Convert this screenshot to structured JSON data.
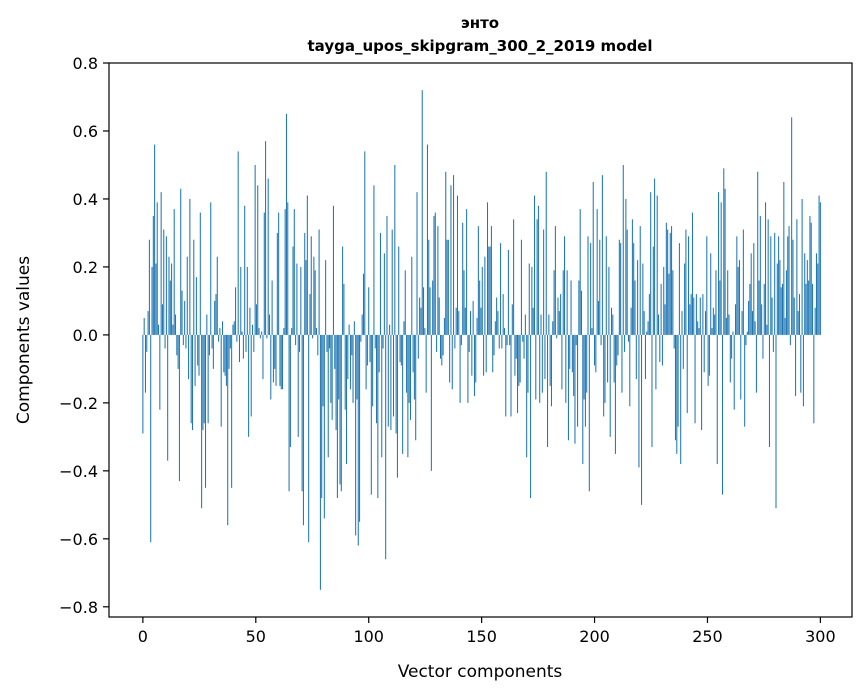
{
  "chart_data": {
    "type": "bar",
    "title": "энто",
    "subtitle": "tayga_upos_skipgram_300_2_2019 model",
    "xlabel": "Vector components",
    "ylabel": "Components values",
    "xlim": [
      -15,
      314
    ],
    "ylim": [
      -0.83,
      0.8
    ],
    "xticks": [
      0,
      50,
      100,
      150,
      200,
      250,
      300
    ],
    "yticks": [
      -0.8,
      -0.6,
      -0.4,
      -0.2,
      0.0,
      0.2,
      0.4,
      0.6,
      0.8
    ],
    "ytick_labels": [
      "−0.8",
      "−0.6",
      "−0.4",
      "−0.2",
      "0.0",
      "0.2",
      "0.4",
      "0.6",
      "0.8"
    ],
    "grid": false,
    "bar_color": "#1f77b4",
    "values": [
      -0.29,
      0.05,
      -0.17,
      -0.05,
      0.07,
      0.28,
      -0.61,
      0.2,
      0.35,
      0.56,
      0.21,
      0.39,
      0.03,
      -0.22,
      0.42,
      0.09,
      0.31,
      -0.04,
      0.29,
      -0.37,
      0.23,
      0.16,
      0.21,
      0.03,
      0.37,
      0.06,
      -0.06,
      -0.1,
      -0.43,
      0.43,
      0.13,
      -0.03,
      0.1,
      -0.04,
      0.23,
      -0.13,
      0.4,
      -0.26,
      -0.28,
      0.28,
      -0.15,
      0.17,
      -0.09,
      -0.12,
      0.36,
      -0.51,
      -0.28,
      -0.26,
      -0.45,
      0.06,
      -0.26,
      -0.06,
      0.39,
      -0.04,
      -0.1,
      0.1,
      0.12,
      0.23,
      -0.02,
      0.02,
      -0.27,
      0.04,
      -0.11,
      -0.12,
      -0.15,
      -0.56,
      -0.1,
      -0.04,
      -0.45,
      0.03,
      0.04,
      0.14,
      -0.02,
      0.54,
      -0.08,
      0.2,
      0.01,
      -0.07,
      0.38,
      -0.05,
      0.2,
      -0.3,
      0.08,
      -0.24,
      0.03,
      -0.05,
      0.5,
      0.09,
      0.44,
      0.02,
      -0.01,
      0.01,
      -0.13,
      0.36,
      0.57,
      -0.01,
      0.46,
      0.06,
      -0.19,
      0.16,
      -0.14,
      -0.1,
      -0.15,
      0.3,
      0.36,
      -0.15,
      -0.16,
      -0.16,
      0.02,
      0.37,
      0.65,
      0.39,
      -0.46,
      -0.33,
      0.02,
      0.26,
      0.37,
      -0.03,
      0.21,
      -0.3,
      -0.05,
      0.2,
      -0.46,
      -0.56,
      0.3,
      0.22,
      0.41,
      -0.61,
      0.12,
      0.29,
      -0.01,
      0.23,
      0.19,
      0.02,
      -0.06,
      0.31,
      -0.75,
      -0.48,
      -0.21,
      -0.54,
      0.22,
      -0.05,
      -0.36,
      -0.04,
      -0.2,
      -0.25,
      0.38,
      -0.1,
      -0.28,
      -0.48,
      -0.19,
      -0.44,
      -0.46,
      0.26,
      0.15,
      -0.22,
      -0.38,
      -0.13,
      0.03,
      -0.16,
      -0.06,
      -0.2,
      0.04,
      -0.59,
      -0.19,
      -0.62,
      -0.55,
      -0.02,
      0.06,
      0.18,
      0.54,
      -0.16,
      -0.09,
      0.14,
      -0.08,
      -0.47,
      -0.21,
      0.44,
      -0.04,
      -0.26,
      -0.48,
      -0.11,
      0.3,
      -0.36,
      -0.04,
      0.24,
      -0.66,
      0.35,
      -0.27,
      0.03,
      -0.28,
      0.31,
      -0.24,
      0.5,
      -0.29,
      -0.42,
      0.26,
      -0.08,
      -0.09,
      -0.35,
      0.04,
      0.19,
      -0.17,
      -0.36,
      -0.2,
      -0.25,
      0.23,
      -0.11,
      -0.19,
      -0.31,
      0.42,
      -0.07,
      0.11,
      0.08,
      0.72,
      0.14,
      0.02,
      -0.17,
      0.56,
      0.28,
      0.14,
      -0.4,
      0.16,
      0.35,
      0.36,
      -0.05,
      0.32,
      0.11,
      -0.07,
      -0.09,
      -0.06,
      0.05,
      0.48,
      0.28,
      0.28,
      -0.14,
      0.44,
      -0.16,
      0.47,
      -0.04,
      0.08,
      0.41,
      0.07,
      -0.2,
      -0.03,
      0.33,
      0.19,
      0.08,
      0.37,
      -0.2,
      -0.05,
      0.07,
      -0.12,
      0.1,
      -0.18,
      -0.14,
      0.05,
      0.32,
      0.16,
      0.08,
      0.2,
      -0.12,
      0.23,
      -0.11,
      0.39,
      0.26,
      0.26,
      0.32,
      -0.11,
      -0.06,
      0.04,
      0.11,
      0.07,
      -0.04,
      0.27,
      -0.04,
      0.12,
      0.02,
      -0.24,
      -0.03,
      0.25,
      -0.03,
      -0.24,
      0.09,
      0.34,
      -0.12,
      -0.07,
      -0.23,
      -0.15,
      -0.14,
      0.28,
      -0.02,
      -0.07,
      0.06,
      -0.36,
      -0.17,
      0.21,
      -0.48,
      0.2,
      0.08,
      0.41,
      -0.19,
      0.34,
      0.38,
      -0.2,
      0.06,
      -0.17,
      0.31,
      -0.13,
      0.48,
      -0.33,
      0.06,
      -0.15,
      -0.21,
      0.04,
      0.19,
      0.32,
      -0.01,
      0.11,
      0.07,
      0.12,
      -0.16,
      0.19,
      0.29,
      -0.2,
      0.19,
      -0.31,
      -0.1,
      0.16,
      -0.11,
      -0.18,
      -0.32,
      -0.03,
      -0.27,
      0.16,
      0.37,
      0.13,
      -0.38,
      -0.19,
      -0.27,
      -0.17,
      0.29,
      -0.46,
      0.27,
      0.02,
      0.45,
      -0.09,
      -0.11,
      0.37,
      0.1,
      0.28,
      -0.03,
      0.47,
      -0.24,
      -0.2,
      0.29,
      -0.14,
      0.2,
      -0.3,
      0.08,
      0.06,
      -0.14,
      -0.35,
      -0.09,
      -0.06,
      0.28,
      0.27,
      -0.17,
      0.5,
      -0.05,
      0.4,
      0.31,
      -0.02,
      -0.21,
      0.08,
      0.34,
      0.27,
      0.16,
      -0.13,
      0.22,
      -0.39,
      0.32,
      -0.5,
      0.21,
      0.07,
      -0.13,
      0.01,
      0.04,
      0.12,
      0.42,
      -0.33,
      0.26,
      0.46,
      -0.16,
      0.41,
      0.06,
      -0.08,
      0.15,
      -0.09,
      0.2,
      0.09,
      0.33,
      0.31,
      0.18,
      0.3,
      0.32,
      0.19,
      -0.04,
      -0.31,
      -0.35,
      -0.27,
      0.27,
      -0.38,
      0.07,
      -0.1,
      0.21,
      0.31,
      -0.23,
      0.29,
      0.09,
      0.12,
      0.36,
      0.11,
      -0.26,
      0.12,
      0.04,
      0.02,
      0.11,
      -0.28,
      0.12,
      -0.11,
      0.07,
      0.29,
      -0.15,
      -0.12,
      0.24,
      0.02,
      0.08,
      0.06,
      0.19,
      -0.38,
      0.42,
      0.16,
      0.39,
      -0.47,
      0.49,
      0.43,
      0.05,
      0.19,
      0.06,
      -0.14,
      -0.07,
      0.01,
      -0.22,
      0.09,
      0.29,
      0.2,
      0.22,
      -0.19,
      0.07,
      0.31,
      -0.27,
      -0.03,
      0.01,
      0.1,
      0.15,
      0.24,
      0.07,
      0.27,
      0.04,
      -0.17,
      0.48,
      0.16,
      0.35,
      0.09,
      -0.07,
      0.15,
      0.39,
      0.03,
      0.34,
      -0.33,
      0.29,
      0.11,
      -0.05,
      0.3,
      -0.51,
      0.21,
      0.29,
      0.22,
      0.14,
      0.15,
      0.45,
      0.05,
      0.19,
      0.29,
      0.32,
      -0.03,
      0.64,
      0.28,
      0.11,
      -0.18,
      0.34,
      0.07,
      0.12,
      -0.17,
      0.4,
      -0.21,
      0.24,
      0.15,
      0.22,
      0.16,
      0.35,
      0.33,
      0.15,
      -0.26,
      0.08,
      0.24,
      0.21,
      0.41,
      0.39
    ]
  }
}
